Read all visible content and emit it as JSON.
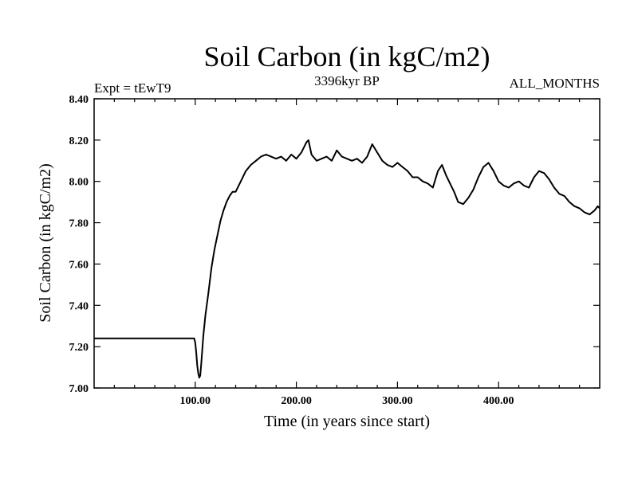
{
  "chart_data": {
    "type": "line",
    "title": "Soil Carbon (in kgC/m2)",
    "subtitle_left": "Expt = tEwT9",
    "subtitle_center": "3396kyr BP",
    "subtitle_right": "ALL_MONTHS",
    "xlabel": "Time (in years since start)",
    "ylabel": "Soil Carbon (in kgC/m2)",
    "xlim": [
      0,
      500
    ],
    "ylim": [
      7.0,
      8.4
    ],
    "xticks": [
      100,
      200,
      300,
      400
    ],
    "xtick_labels": [
      "100.00",
      "200.00",
      "300.00",
      "400.00"
    ],
    "yticks": [
      7.0,
      7.2,
      7.4,
      7.6,
      7.8,
      8.0,
      8.2,
      8.4
    ],
    "ytick_labels": [
      "7.00",
      "7.20",
      "7.40",
      "7.60",
      "7.80",
      "8.00",
      "8.20",
      "8.40"
    ],
    "grid": false,
    "series": [
      {
        "name": "Soil Carbon",
        "color": "#000000",
        "x": [
          0,
          99,
          100,
          101,
          102,
          103,
          104,
          105,
          106,
          108,
          110,
          113,
          116,
          119,
          122,
          125,
          128,
          131,
          134,
          137,
          140,
          145,
          150,
          155,
          160,
          165,
          170,
          175,
          180,
          185,
          190,
          195,
          200,
          205,
          210,
          212,
          215,
          220,
          225,
          230,
          235,
          240,
          245,
          250,
          255,
          260,
          265,
          270,
          275,
          280,
          285,
          290,
          295,
          300,
          305,
          310,
          315,
          320,
          325,
          330,
          335,
          340,
          344,
          348,
          352,
          356,
          360,
          365,
          370,
          375,
          380,
          385,
          390,
          395,
          400,
          405,
          410,
          415,
          420,
          425,
          430,
          435,
          440,
          445,
          450,
          455,
          460,
          465,
          470,
          475,
          480,
          485,
          490,
          495,
          498,
          500
        ],
        "values": [
          7.24,
          7.24,
          7.22,
          7.17,
          7.11,
          7.07,
          7.05,
          7.06,
          7.12,
          7.25,
          7.35,
          7.46,
          7.58,
          7.67,
          7.74,
          7.81,
          7.86,
          7.9,
          7.93,
          7.95,
          7.95,
          8.0,
          8.05,
          8.08,
          8.1,
          8.12,
          8.13,
          8.12,
          8.11,
          8.12,
          8.1,
          8.13,
          8.11,
          8.14,
          8.19,
          8.2,
          8.13,
          8.1,
          8.11,
          8.12,
          8.1,
          8.15,
          8.12,
          8.11,
          8.1,
          8.11,
          8.09,
          8.12,
          8.18,
          8.14,
          8.1,
          8.08,
          8.07,
          8.09,
          8.07,
          8.05,
          8.02,
          8.02,
          8.0,
          7.99,
          7.97,
          8.05,
          8.08,
          8.03,
          7.99,
          7.95,
          7.9,
          7.89,
          7.92,
          7.96,
          8.02,
          8.07,
          8.09,
          8.05,
          8.0,
          7.98,
          7.97,
          7.99,
          8.0,
          7.98,
          7.97,
          8.02,
          8.05,
          8.04,
          8.01,
          7.97,
          7.94,
          7.93,
          7.9,
          7.88,
          7.87,
          7.85,
          7.84,
          7.86,
          7.88,
          7.87
        ]
      }
    ]
  }
}
